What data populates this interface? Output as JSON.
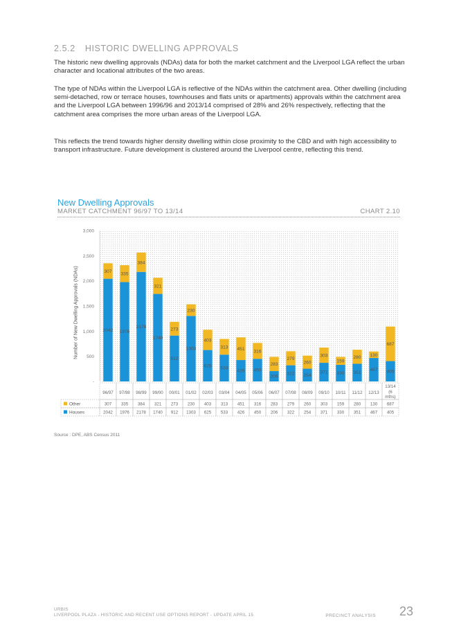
{
  "section": {
    "number": "2.5.2",
    "title": "HISTORIC DWELLING APPROVALS"
  },
  "paragraphs": [
    "The historic new dwelling approvals (NDAs) data for both the market catchment and the Liverpool LGA reflect the urban character and locational attributes of the two areas.",
    "The type of NDAs within the Liverpool LGA is reflective of the NDAs within the catchment area. Other dwelling (including semi-detached, row or terrace houses, townhouses and flats units or apartments) approvals within the catchment area and the Liverpool LGA between 1996/96 and 2013/14 comprised of 28% and 26% respectively, reflecting that the catchment area comprises the more urban areas of the Liverpool LGA.",
    "This reflects the trend towards higher density dwelling within close proximity to the CBD and with high accessibility to transport infrastructure.  Future development is clustered around the Liverpool centre, reflecting this trend."
  ],
  "chart_header": {
    "title": "New Dwelling Approvals",
    "subtitle": "MARKET CATCHMENT 96/97 TO 13/14",
    "chart_number": "CHART 2.10"
  },
  "chart_data": {
    "type": "bar",
    "stacked": true,
    "categories": [
      "96/97",
      "97/98",
      "98/99",
      "99/00",
      "00/01",
      "01/02",
      "02/03",
      "03/04",
      "04/05",
      "05/06",
      "06/07",
      "07/08",
      "08/09",
      "09/10",
      "10/11",
      "11/12",
      "12/13",
      "13/14 (6 mths)"
    ],
    "series": [
      {
        "name": "Other",
        "color": "#f2b824",
        "values": [
          307,
          335,
          384,
          321,
          273,
          230,
          403,
          313,
          451,
          316,
          283,
          279,
          260,
          303,
          159,
          280,
          130,
          687
        ]
      },
      {
        "name": "Houses",
        "color": "#1b93d9",
        "values": [
          2042,
          1976,
          2178,
          1740,
          912,
          1303,
          625,
          533,
          426,
          450,
          206,
          322,
          254,
          371,
          330,
          351,
          467,
          405
        ]
      }
    ],
    "table_rows": [
      {
        "name": "Other",
        "values": [
          "307",
          "335",
          "384",
          "321",
          "273",
          "230",
          "403",
          "313",
          "451",
          "316",
          "283",
          "279",
          "260",
          "303",
          "159",
          "280",
          "130",
          "687"
        ]
      },
      {
        "name": "Houses",
        "values": [
          "2042",
          "1976",
          "2178",
          "1740",
          "912",
          "1303",
          "625",
          "533",
          "426",
          "450",
          "206",
          "322",
          "254",
          "371",
          "330",
          "351",
          "467",
          "405"
        ]
      }
    ],
    "ylabel": "Number of New Dwelling Approvals (NDAs)",
    "yticks": [
      "-",
      "500",
      "1,000",
      "1,500",
      "2,000",
      "2,500",
      "3,000"
    ],
    "ylim": [
      0,
      3000
    ],
    "grid": false,
    "legend": "table"
  },
  "source": "Source : DPE, ABS Census 2011",
  "footer": {
    "left_line1": "URBIS",
    "left_line2": "LIVERPOOL PLAZA - HISTORIC AND RECENT USE OPTIONS REPORT - UPDATE APRIL 15",
    "right_label": "PRECINCT ANALYSIS",
    "page_number": "23"
  }
}
